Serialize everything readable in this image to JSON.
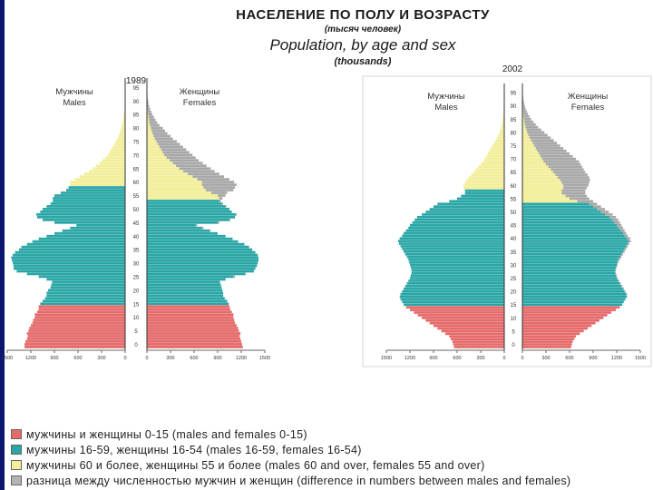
{
  "slide": {
    "title_ru": "НАСЕЛЕНИЕ ПО ПОЛУ И ВОЗРАСТУ",
    "subtitle_ru": "(тысяч человек)",
    "title_en": "Population, by age and sex",
    "subtitle_en": "(thousands)"
  },
  "legend": [
    {
      "color": "#e56a6a",
      "text": "мужчины и женщины 0-15 (males and females 0-15)"
    },
    {
      "color": "#2aa6a6",
      "text": "мужчины 16-59, женщины 16-54 (males 16-59, females 16-54)"
    },
    {
      "color": "#f2ee9a",
      "text": "мужчины 60 и более, женщины 55 и более (males 60 and over, females 55 and over)"
    },
    {
      "color": "#b4b4b4",
      "text": "разница между численностью мужчин и женщин (difference in numbers between males and females)"
    }
  ],
  "colors": {
    "young": "#e56a6a",
    "working": "#2aa6a6",
    "elderly": "#f2ee9a",
    "difference": "#a8a8a8",
    "accent_bar": "#0a1670"
  },
  "chart_data": [
    {
      "type": "population_pyramid",
      "year": "1989",
      "left_label": "Мужчины\nMales",
      "right_label": "Женщины\nFemales",
      "age_ticks": [
        "0",
        "5",
        "10",
        "15",
        "20",
        "25",
        "30",
        "35",
        "40",
        "45",
        "50",
        "55",
        "60",
        "65",
        "70",
        "75",
        "80",
        "85",
        "90",
        "95"
      ],
      "x_ticks_left": [
        "1500",
        "1200",
        "900",
        "600",
        "300",
        "0"
      ],
      "x_ticks_right": [
        "0",
        "300",
        "600",
        "900",
        "1200",
        "1500"
      ],
      "xlim": [
        0,
        1500
      ],
      "ages": [
        0,
        100
      ],
      "males": [
        1280,
        1280,
        1270,
        1250,
        1240,
        1250,
        1230,
        1220,
        1200,
        1180,
        1170,
        1150,
        1150,
        1120,
        1100,
        1100,
        1080,
        1050,
        1020,
        1000,
        1000,
        980,
        950,
        940,
        930,
        1000,
        1100,
        1250,
        1380,
        1420,
        1420,
        1430,
        1440,
        1450,
        1430,
        1400,
        1350,
        1320,
        1250,
        1180,
        1100,
        1000,
        900,
        800,
        700,
        620,
        900,
        1050,
        1120,
        1130,
        1080,
        1050,
        1000,
        950,
        920,
        920,
        900,
        820,
        750,
        720,
        700,
        700,
        640,
        580,
        520,
        460,
        410,
        370,
        330,
        290,
        250,
        220,
        200,
        180,
        160,
        140,
        120,
        100,
        85,
        70,
        60,
        50,
        40,
        30,
        25,
        20,
        15,
        10,
        8,
        6,
        5,
        4,
        3,
        3,
        2,
        2,
        2,
        1,
        1,
        1
      ],
      "females": [
        1220,
        1210,
        1200,
        1190,
        1180,
        1190,
        1170,
        1160,
        1140,
        1120,
        1110,
        1100,
        1100,
        1080,
        1060,
        1050,
        1040,
        1020,
        990,
        970,
        970,
        960,
        950,
        940,
        930,
        1000,
        1120,
        1260,
        1360,
        1380,
        1400,
        1410,
        1420,
        1420,
        1410,
        1380,
        1340,
        1300,
        1240,
        1160,
        1090,
        1000,
        900,
        810,
        720,
        640,
        920,
        1060,
        1120,
        1140,
        1080,
        1050,
        1010,
        970,
        940,
        960,
        1000,
        1020,
        1100,
        1120,
        1140,
        1110,
        1050,
        980,
        920,
        860,
        810,
        760,
        710,
        660,
        620,
        580,
        540,
        500,
        460,
        420,
        380,
        330,
        300,
        260,
        230,
        200,
        160,
        130,
        110,
        90,
        70,
        55,
        40,
        30,
        20,
        15,
        10,
        8,
        6,
        5,
        4,
        3,
        2,
        2
      ]
    },
    {
      "type": "population_pyramid",
      "year": "2002",
      "left_label": "Мужчины\nMales",
      "right_label": "Женщины\nFemales",
      "age_ticks": [
        "0",
        "5",
        "10",
        "15",
        "20",
        "25",
        "30",
        "35",
        "40",
        "45",
        "50",
        "55",
        "60",
        "65",
        "70",
        "75",
        "80",
        "85",
        "90",
        "95"
      ],
      "x_ticks_left": [
        "1500",
        "1200",
        "900",
        "600",
        "300",
        "0"
      ],
      "x_ticks_right": [
        "0",
        "300",
        "600",
        "900",
        "1200",
        "1500"
      ],
      "xlim": [
        0,
        1500
      ],
      "ages": [
        0,
        100
      ],
      "males": [
        640,
        650,
        660,
        680,
        700,
        750,
        800,
        850,
        900,
        950,
        1000,
        1050,
        1100,
        1150,
        1200,
        1250,
        1280,
        1300,
        1320,
        1330,
        1320,
        1300,
        1280,
        1260,
        1240,
        1220,
        1200,
        1190,
        1180,
        1180,
        1190,
        1200,
        1210,
        1220,
        1240,
        1260,
        1280,
        1300,
        1320,
        1340,
        1350,
        1330,
        1300,
        1280,
        1250,
        1220,
        1200,
        1170,
        1140,
        1110,
        1050,
        1000,
        950,
        900,
        850,
        700,
        600,
        550,
        500,
        500,
        520,
        520,
        500,
        480,
        450,
        420,
        390,
        360,
        330,
        300,
        270,
        250,
        230,
        210,
        190,
        170,
        150,
        130,
        110,
        90,
        75,
        60,
        50,
        40,
        30,
        25,
        20,
        15,
        12,
        10,
        8,
        6,
        5,
        4,
        3,
        2,
        2,
        1,
        1,
        1
      ],
      "females": [
        620,
        630,
        640,
        660,
        680,
        730,
        780,
        830,
        880,
        930,
        980,
        1030,
        1080,
        1130,
        1190,
        1240,
        1270,
        1290,
        1310,
        1330,
        1330,
        1310,
        1290,
        1270,
        1250,
        1230,
        1210,
        1200,
        1190,
        1190,
        1200,
        1210,
        1220,
        1240,
        1260,
        1280,
        1300,
        1320,
        1340,
        1360,
        1380,
        1370,
        1340,
        1320,
        1300,
        1280,
        1260,
        1240,
        1220,
        1190,
        1150,
        1100,
        1050,
        1000,
        950,
        900,
        850,
        820,
        800,
        800,
        820,
        840,
        850,
        860,
        850,
        830,
        800,
        780,
        760,
        740,
        720,
        680,
        640,
        600,
        560,
        520,
        480,
        440,
        400,
        360,
        320,
        280,
        240,
        200,
        170,
        140,
        110,
        90,
        70,
        55,
        40,
        30,
        22,
        16,
        12,
        8,
        6,
        4,
        3,
        2
      ]
    }
  ]
}
